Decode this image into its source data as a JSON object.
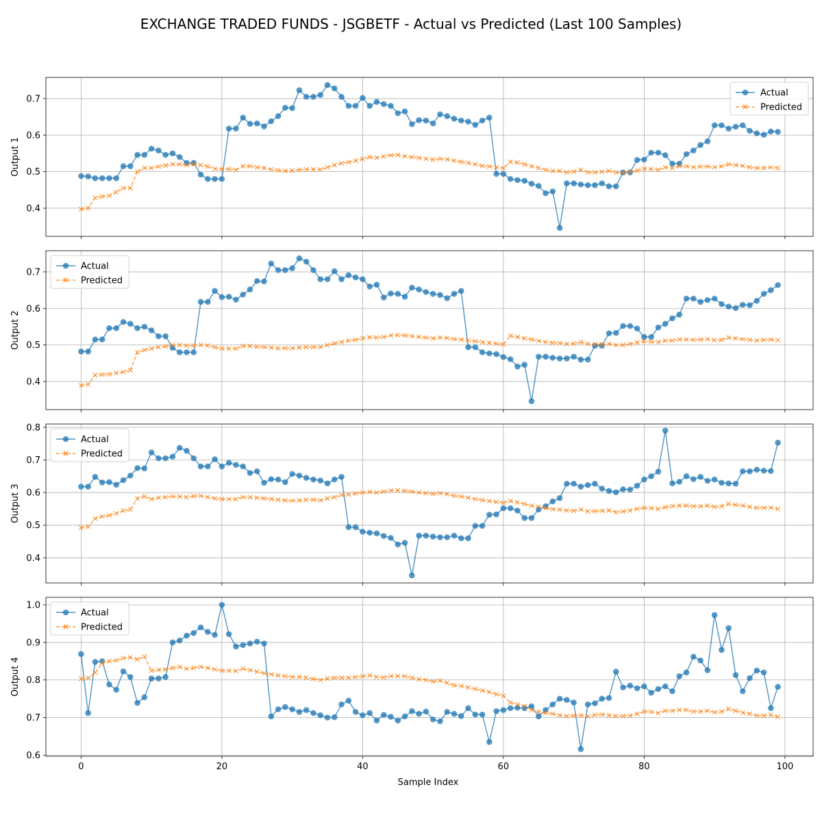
{
  "figure": {
    "title": "EXCHANGE TRADED FUNDS - JSGBETF - Actual vs Predicted (Last 100 Samples)",
    "xlabel": "Sample Index"
  },
  "colors": {
    "actual": "#1f77b4",
    "predicted": "#ff7f0e",
    "grid": "#b0b0b0"
  },
  "chart_data": [
    {
      "type": "line",
      "ylabel": "Output 1",
      "legend": {
        "position": "top-right",
        "entries": [
          "Actual",
          "Predicted"
        ]
      },
      "xlim": [
        -5,
        104
      ],
      "ylim": [
        0.323,
        0.758
      ],
      "xticks": [
        0,
        20,
        40,
        60,
        80,
        100
      ],
      "yticks": [
        0.4,
        0.5,
        0.6,
        0.7
      ],
      "grid": true,
      "series": [
        {
          "name": "Actual",
          "marker": "circle",
          "values": [
            0.488,
            0.487,
            0.482,
            0.482,
            0.482,
            0.482,
            0.515,
            0.515,
            0.546,
            0.546,
            0.563,
            0.558,
            0.546,
            0.55,
            0.54,
            0.524,
            0.524,
            0.492,
            0.48,
            0.48,
            0.48,
            0.618,
            0.618,
            0.648,
            0.631,
            0.632,
            0.624,
            0.638,
            0.652,
            0.675,
            0.674,
            0.723,
            0.705,
            0.705,
            0.71,
            0.737,
            0.728,
            0.705,
            0.68,
            0.68,
            0.702,
            0.68,
            0.691,
            0.685,
            0.68,
            0.66,
            0.665,
            0.63,
            0.641,
            0.64,
            0.632,
            0.657,
            0.652,
            0.645,
            0.64,
            0.637,
            0.628,
            0.64,
            0.648,
            0.494,
            0.494,
            0.48,
            0.477,
            0.475,
            0.467,
            0.461,
            0.441,
            0.446,
            0.346,
            0.468,
            0.468,
            0.465,
            0.463,
            0.463,
            0.468,
            0.46,
            0.46,
            0.498,
            0.498,
            0.532,
            0.533,
            0.552,
            0.552,
            0.545,
            0.522,
            0.522,
            0.548,
            0.558,
            0.573,
            0.583,
            0.627,
            0.627,
            0.618,
            0.623,
            0.627,
            0.612,
            0.605,
            0.601,
            0.61,
            0.609
          ]
        },
        {
          "name": "Predicted",
          "marker": "x",
          "values": [
            0.397,
            0.4,
            0.428,
            0.432,
            0.434,
            0.444,
            0.455,
            0.455,
            0.5,
            0.51,
            0.51,
            0.514,
            0.517,
            0.52,
            0.52,
            0.518,
            0.52,
            0.518,
            0.514,
            0.508,
            0.507,
            0.507,
            0.505,
            0.515,
            0.515,
            0.512,
            0.51,
            0.506,
            0.504,
            0.502,
            0.503,
            0.505,
            0.506,
            0.506,
            0.506,
            0.512,
            0.518,
            0.523,
            0.526,
            0.53,
            0.535,
            0.54,
            0.538,
            0.542,
            0.545,
            0.546,
            0.542,
            0.54,
            0.538,
            0.535,
            0.533,
            0.535,
            0.534,
            0.53,
            0.527,
            0.524,
            0.52,
            0.516,
            0.514,
            0.512,
            0.51,
            0.527,
            0.525,
            0.52,
            0.515,
            0.51,
            0.505,
            0.502,
            0.502,
            0.498,
            0.5,
            0.505,
            0.498,
            0.498,
            0.5,
            0.502,
            0.498,
            0.497,
            0.5,
            0.503,
            0.508,
            0.507,
            0.505,
            0.512,
            0.51,
            0.515,
            0.515,
            0.512,
            0.514,
            0.514,
            0.512,
            0.515,
            0.52,
            0.518,
            0.516,
            0.512,
            0.51,
            0.51,
            0.512,
            0.51
          ]
        }
      ]
    },
    {
      "type": "line",
      "ylabel": "Output 2",
      "legend": {
        "position": "top-left",
        "entries": [
          "Actual",
          "Predicted"
        ]
      },
      "xlim": [
        -5,
        104
      ],
      "ylim": [
        0.323,
        0.758
      ],
      "xticks": [
        0,
        20,
        40,
        60,
        80,
        100
      ],
      "yticks": [
        0.4,
        0.5,
        0.6,
        0.7
      ],
      "grid": true,
      "series": [
        {
          "name": "Actual",
          "marker": "circle",
          "values": [
            0.482,
            0.482,
            0.515,
            0.515,
            0.546,
            0.546,
            0.563,
            0.558,
            0.546,
            0.55,
            0.54,
            0.524,
            0.524,
            0.492,
            0.48,
            0.48,
            0.48,
            0.618,
            0.618,
            0.648,
            0.631,
            0.632,
            0.624,
            0.638,
            0.652,
            0.675,
            0.674,
            0.723,
            0.705,
            0.705,
            0.71,
            0.737,
            0.728,
            0.705,
            0.68,
            0.68,
            0.702,
            0.68,
            0.691,
            0.685,
            0.68,
            0.66,
            0.665,
            0.63,
            0.641,
            0.64,
            0.632,
            0.657,
            0.652,
            0.645,
            0.64,
            0.637,
            0.628,
            0.64,
            0.648,
            0.494,
            0.494,
            0.48,
            0.477,
            0.475,
            0.467,
            0.461,
            0.441,
            0.446,
            0.346,
            0.468,
            0.468,
            0.465,
            0.463,
            0.463,
            0.468,
            0.46,
            0.46,
            0.498,
            0.498,
            0.532,
            0.533,
            0.552,
            0.552,
            0.545,
            0.522,
            0.522,
            0.548,
            0.558,
            0.573,
            0.583,
            0.627,
            0.627,
            0.618,
            0.623,
            0.627,
            0.612,
            0.605,
            0.601,
            0.61,
            0.609,
            0.621,
            0.64,
            0.65,
            0.664
          ]
        },
        {
          "name": "Predicted",
          "marker": "x",
          "values": [
            0.389,
            0.392,
            0.418,
            0.419,
            0.42,
            0.423,
            0.426,
            0.431,
            0.48,
            0.486,
            0.49,
            0.494,
            0.496,
            0.5,
            0.5,
            0.498,
            0.498,
            0.5,
            0.498,
            0.494,
            0.49,
            0.49,
            0.49,
            0.497,
            0.497,
            0.495,
            0.494,
            0.493,
            0.491,
            0.491,
            0.491,
            0.493,
            0.494,
            0.494,
            0.494,
            0.5,
            0.504,
            0.508,
            0.512,
            0.514,
            0.518,
            0.521,
            0.52,
            0.522,
            0.526,
            0.527,
            0.526,
            0.524,
            0.522,
            0.52,
            0.518,
            0.52,
            0.519,
            0.516,
            0.515,
            0.513,
            0.51,
            0.508,
            0.506,
            0.504,
            0.502,
            0.525,
            0.522,
            0.518,
            0.515,
            0.511,
            0.508,
            0.506,
            0.505,
            0.503,
            0.504,
            0.508,
            0.503,
            0.502,
            0.502,
            0.503,
            0.5,
            0.5,
            0.503,
            0.507,
            0.51,
            0.509,
            0.508,
            0.512,
            0.512,
            0.515,
            0.515,
            0.514,
            0.515,
            0.516,
            0.513,
            0.514,
            0.52,
            0.518,
            0.516,
            0.514,
            0.512,
            0.514,
            0.515,
            0.513
          ]
        }
      ]
    },
    {
      "type": "line",
      "ylabel": "Output 3",
      "legend": {
        "position": "top-left",
        "entries": [
          "Actual",
          "Predicted"
        ]
      },
      "xlim": [
        -5,
        104
      ],
      "ylim": [
        0.323,
        0.81
      ],
      "xticks": [
        0,
        20,
        40,
        60,
        80,
        100
      ],
      "yticks": [
        0.4,
        0.5,
        0.6,
        0.7,
        0.8
      ],
      "grid": true,
      "series": [
        {
          "name": "Actual",
          "marker": "circle",
          "values": [
            0.618,
            0.618,
            0.648,
            0.631,
            0.632,
            0.624,
            0.638,
            0.652,
            0.675,
            0.674,
            0.723,
            0.705,
            0.705,
            0.71,
            0.737,
            0.728,
            0.705,
            0.68,
            0.68,
            0.702,
            0.68,
            0.691,
            0.685,
            0.68,
            0.66,
            0.665,
            0.63,
            0.641,
            0.64,
            0.632,
            0.657,
            0.652,
            0.645,
            0.64,
            0.637,
            0.628,
            0.64,
            0.648,
            0.494,
            0.494,
            0.48,
            0.477,
            0.475,
            0.467,
            0.461,
            0.441,
            0.446,
            0.346,
            0.468,
            0.468,
            0.465,
            0.463,
            0.463,
            0.468,
            0.46,
            0.46,
            0.498,
            0.498,
            0.532,
            0.533,
            0.552,
            0.552,
            0.545,
            0.522,
            0.522,
            0.548,
            0.558,
            0.573,
            0.583,
            0.627,
            0.627,
            0.618,
            0.623,
            0.627,
            0.612,
            0.605,
            0.601,
            0.61,
            0.609,
            0.621,
            0.64,
            0.65,
            0.664,
            0.79,
            0.628,
            0.633,
            0.65,
            0.641,
            0.648,
            0.636,
            0.64,
            0.63,
            0.628,
            0.627,
            0.665,
            0.665,
            0.67,
            0.667,
            0.666,
            0.753
          ]
        },
        {
          "name": "Predicted",
          "marker": "x",
          "values": [
            0.492,
            0.495,
            0.52,
            0.527,
            0.53,
            0.536,
            0.545,
            0.548,
            0.582,
            0.588,
            0.58,
            0.584,
            0.586,
            0.588,
            0.588,
            0.586,
            0.589,
            0.59,
            0.586,
            0.582,
            0.58,
            0.58,
            0.58,
            0.586,
            0.586,
            0.584,
            0.582,
            0.58,
            0.578,
            0.576,
            0.575,
            0.576,
            0.578,
            0.578,
            0.576,
            0.582,
            0.586,
            0.592,
            0.594,
            0.597,
            0.6,
            0.602,
            0.6,
            0.603,
            0.606,
            0.607,
            0.605,
            0.603,
            0.6,
            0.598,
            0.596,
            0.598,
            0.595,
            0.59,
            0.588,
            0.584,
            0.58,
            0.577,
            0.574,
            0.571,
            0.569,
            0.574,
            0.57,
            0.565,
            0.56,
            0.556,
            0.552,
            0.549,
            0.548,
            0.545,
            0.544,
            0.548,
            0.542,
            0.543,
            0.544,
            0.545,
            0.54,
            0.542,
            0.545,
            0.55,
            0.553,
            0.552,
            0.55,
            0.555,
            0.558,
            0.56,
            0.56,
            0.558,
            0.558,
            0.56,
            0.556,
            0.558,
            0.565,
            0.562,
            0.56,
            0.556,
            0.553,
            0.553,
            0.554,
            0.55
          ]
        }
      ]
    },
    {
      "type": "line",
      "ylabel": "Output 4",
      "legend": {
        "position": "top-left",
        "entries": [
          "Actual",
          "Predicted"
        ]
      },
      "xlim": [
        -5,
        104
      ],
      "ylim": [
        0.597,
        1.02
      ],
      "xticks": [
        0,
        20,
        40,
        60,
        80,
        100
      ],
      "yticks": [
        0.6,
        0.7,
        0.8,
        0.9,
        1.0
      ],
      "grid": true,
      "series": [
        {
          "name": "Actual",
          "marker": "circle",
          "values": [
            0.869,
            0.712,
            0.848,
            0.85,
            0.788,
            0.774,
            0.823,
            0.808,
            0.739,
            0.754,
            0.804,
            0.804,
            0.808,
            0.9,
            0.905,
            0.918,
            0.925,
            0.94,
            0.928,
            0.92,
            1.0,
            0.922,
            0.889,
            0.893,
            0.897,
            0.902,
            0.897,
            0.703,
            0.722,
            0.728,
            0.722,
            0.715,
            0.72,
            0.712,
            0.706,
            0.7,
            0.701,
            0.735,
            0.745,
            0.715,
            0.706,
            0.712,
            0.692,
            0.707,
            0.702,
            0.692,
            0.703,
            0.717,
            0.71,
            0.716,
            0.695,
            0.69,
            0.715,
            0.71,
            0.704,
            0.725,
            0.708,
            0.708,
            0.635,
            0.717,
            0.72,
            0.725,
            0.726,
            0.725,
            0.73,
            0.703,
            0.72,
            0.735,
            0.75,
            0.747,
            0.74,
            0.616,
            0.735,
            0.738,
            0.75,
            0.752,
            0.822,
            0.78,
            0.785,
            0.778,
            0.783,
            0.766,
            0.776,
            0.783,
            0.77,
            0.81,
            0.82,
            0.862,
            0.852,
            0.826,
            0.973,
            0.88,
            0.938,
            0.813,
            0.77,
            0.805,
            0.825,
            0.82,
            0.725,
            0.782
          ]
        },
        {
          "name": "Predicted",
          "marker": "x",
          "values": [
            0.803,
            0.805,
            0.82,
            0.845,
            0.85,
            0.852,
            0.858,
            0.86,
            0.855,
            0.862,
            0.825,
            0.827,
            0.828,
            0.832,
            0.835,
            0.83,
            0.832,
            0.835,
            0.832,
            0.828,
            0.825,
            0.825,
            0.824,
            0.83,
            0.826,
            0.822,
            0.818,
            0.815,
            0.812,
            0.81,
            0.808,
            0.808,
            0.806,
            0.803,
            0.8,
            0.804,
            0.806,
            0.806,
            0.806,
            0.808,
            0.81,
            0.812,
            0.808,
            0.807,
            0.81,
            0.81,
            0.81,
            0.806,
            0.802,
            0.8,
            0.796,
            0.798,
            0.792,
            0.786,
            0.784,
            0.78,
            0.776,
            0.772,
            0.768,
            0.762,
            0.758,
            0.74,
            0.735,
            0.73,
            0.72,
            0.715,
            0.712,
            0.71,
            0.706,
            0.704,
            0.705,
            0.706,
            0.703,
            0.707,
            0.708,
            0.706,
            0.704,
            0.704,
            0.705,
            0.71,
            0.716,
            0.715,
            0.712,
            0.718,
            0.718,
            0.72,
            0.72,
            0.716,
            0.716,
            0.718,
            0.714,
            0.716,
            0.723,
            0.718,
            0.713,
            0.71,
            0.705,
            0.705,
            0.707,
            0.702
          ]
        }
      ]
    }
  ]
}
